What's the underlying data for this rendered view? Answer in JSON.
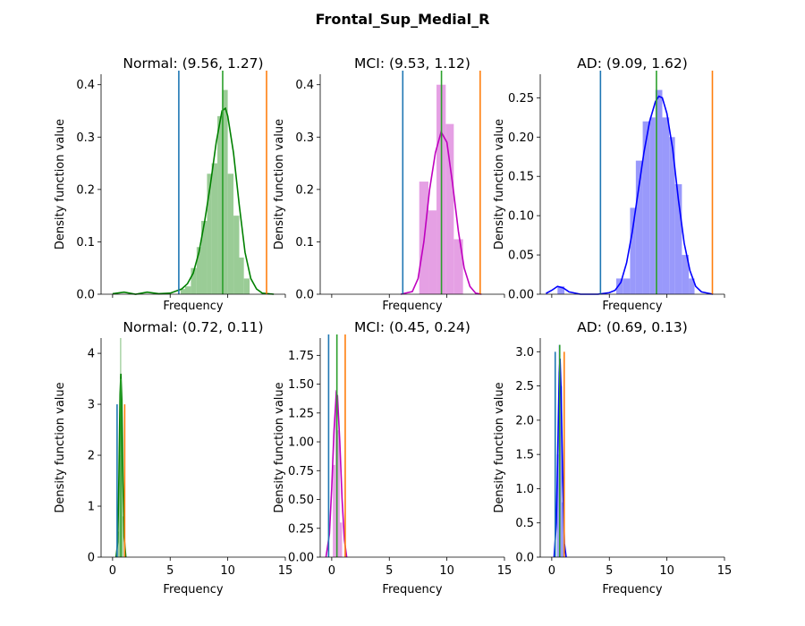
{
  "figure": {
    "title": "Frontal_Sup_Medial_R"
  },
  "colors": {
    "normal": "#008000",
    "normal_bar": "#9acc96",
    "mci": "#bf00bf",
    "mci_bar": "#e5a0e4",
    "ad": "#0000ff",
    "ad_bar": "#9999fb",
    "line_low": "#1f77b4",
    "line_mean": "#2ca02c",
    "line_high": "#ff7f0e"
  },
  "chart_data": [
    {
      "type": "histogram-kde",
      "title": "Normal: (9.56, 1.27)",
      "xlabel": "Frequency",
      "ylabel": "Density function value",
      "xlim": [
        -1,
        15
      ],
      "ylim": [
        0,
        0.42
      ],
      "yticks": [
        0.0,
        0.1,
        0.2,
        0.3,
        0.4
      ],
      "ytick_labels": [
        "0.0",
        "0.1",
        "0.2",
        "0.3",
        "0.4"
      ],
      "xticks": [
        0,
        5,
        10,
        15
      ],
      "show_xtick_labels": false,
      "color_key": "normal",
      "bars": [
        {
          "x0": 5.9,
          "x1": 6.3,
          "y": 0.01
        },
        {
          "x0": 6.3,
          "x1": 6.8,
          "y": 0.015
        },
        {
          "x0": 6.8,
          "x1": 7.3,
          "y": 0.05
        },
        {
          "x0": 7.3,
          "x1": 7.7,
          "y": 0.09
        },
        {
          "x0": 7.7,
          "x1": 8.2,
          "y": 0.14
        },
        {
          "x0": 8.2,
          "x1": 8.6,
          "y": 0.23
        },
        {
          "x0": 8.6,
          "x1": 9.1,
          "y": 0.25
        },
        {
          "x0": 9.1,
          "x1": 9.6,
          "y": 0.34
        },
        {
          "x0": 9.6,
          "x1": 10.0,
          "y": 0.39
        },
        {
          "x0": 10.0,
          "x1": 10.5,
          "y": 0.23
        },
        {
          "x0": 10.5,
          "x1": 11.0,
          "y": 0.15
        },
        {
          "x0": 11.0,
          "x1": 11.4,
          "y": 0.07
        },
        {
          "x0": 11.4,
          "x1": 11.9,
          "y": 0.03
        }
      ],
      "kde": [
        [
          0.0,
          0.001
        ],
        [
          1.0,
          0.004
        ],
        [
          2.0,
          0.0
        ],
        [
          3.0,
          0.004
        ],
        [
          4.0,
          0.001
        ],
        [
          5.0,
          0.002
        ],
        [
          6.0,
          0.01
        ],
        [
          6.5,
          0.02
        ],
        [
          7.0,
          0.04
        ],
        [
          7.5,
          0.08
        ],
        [
          8.0,
          0.14
        ],
        [
          8.5,
          0.21
        ],
        [
          9.0,
          0.29
        ],
        [
          9.5,
          0.35
        ],
        [
          9.8,
          0.355
        ],
        [
          10.0,
          0.34
        ],
        [
          10.5,
          0.27
        ],
        [
          11.0,
          0.17
        ],
        [
          11.5,
          0.08
        ],
        [
          12.0,
          0.03
        ],
        [
          12.5,
          0.01
        ],
        [
          13.0,
          0.002
        ],
        [
          14.0,
          0.0
        ]
      ],
      "vlines": [
        {
          "x": 5.75,
          "color_key": "line_low"
        },
        {
          "x": 9.56,
          "color_key": "line_mean"
        },
        {
          "x": 13.37,
          "color_key": "line_high"
        }
      ]
    },
    {
      "type": "histogram-kde",
      "title": "MCI: (9.53, 1.12)",
      "xlabel": "Frequency",
      "ylabel": "Density function value",
      "xlim": [
        -1,
        15
      ],
      "ylim": [
        0,
        0.42
      ],
      "yticks": [
        0.0,
        0.1,
        0.2,
        0.3,
        0.4
      ],
      "ytick_labels": [
        "0.0",
        "0.1",
        "0.2",
        "0.3",
        "0.4"
      ],
      "xticks": [
        0,
        5,
        10,
        15
      ],
      "show_xtick_labels": false,
      "color_key": "mci",
      "bars": [
        {
          "x0": 7.6,
          "x1": 8.4,
          "y": 0.215
        },
        {
          "x0": 8.4,
          "x1": 9.1,
          "y": 0.16
        },
        {
          "x0": 9.1,
          "x1": 9.9,
          "y": 0.4
        },
        {
          "x0": 9.9,
          "x1": 10.6,
          "y": 0.325
        },
        {
          "x0": 10.6,
          "x1": 11.4,
          "y": 0.105
        }
      ],
      "kde": [
        [
          6.0,
          0.0
        ],
        [
          7.0,
          0.005
        ],
        [
          7.5,
          0.03
        ],
        [
          8.0,
          0.1
        ],
        [
          8.5,
          0.2
        ],
        [
          9.0,
          0.27
        ],
        [
          9.5,
          0.31
        ],
        [
          10.0,
          0.29
        ],
        [
          10.5,
          0.21
        ],
        [
          11.0,
          0.12
        ],
        [
          11.5,
          0.05
        ],
        [
          12.0,
          0.015
        ],
        [
          12.5,
          0.002
        ],
        [
          13.0,
          0.0
        ]
      ],
      "vlines": [
        {
          "x": 6.17,
          "color_key": "line_low"
        },
        {
          "x": 9.53,
          "color_key": "line_mean"
        },
        {
          "x": 12.89,
          "color_key": "line_high"
        }
      ]
    },
    {
      "type": "histogram-kde",
      "title": "AD: (9.09, 1.62)",
      "xlabel": "Frequency",
      "ylabel": "Density function value",
      "xlim": [
        -1,
        15
      ],
      "ylim": [
        0,
        0.28
      ],
      "yticks": [
        0.0,
        0.05,
        0.1,
        0.15,
        0.2,
        0.25
      ],
      "ytick_labels": [
        "0.00",
        "0.05",
        "0.10",
        "0.15",
        "0.20",
        "0.25"
      ],
      "xticks": [
        0,
        5,
        10,
        15
      ],
      "show_xtick_labels": false,
      "color_key": "ad",
      "bars": [
        {
          "x0": 0.5,
          "x1": 1.1,
          "y": 0.01
        },
        {
          "x0": 5.6,
          "x1": 6.2,
          "y": 0.02
        },
        {
          "x0": 6.2,
          "x1": 6.8,
          "y": 0.02
        },
        {
          "x0": 6.8,
          "x1": 7.3,
          "y": 0.11
        },
        {
          "x0": 7.3,
          "x1": 7.9,
          "y": 0.17
        },
        {
          "x0": 7.9,
          "x1": 8.5,
          "y": 0.22
        },
        {
          "x0": 8.5,
          "x1": 9.0,
          "y": 0.225
        },
        {
          "x0": 9.0,
          "x1": 9.6,
          "y": 0.26
        },
        {
          "x0": 9.6,
          "x1": 10.2,
          "y": 0.225
        },
        {
          "x0": 10.2,
          "x1": 10.7,
          "y": 0.2
        },
        {
          "x0": 10.7,
          "x1": 11.3,
          "y": 0.14
        },
        {
          "x0": 11.3,
          "x1": 11.9,
          "y": 0.05
        },
        {
          "x0": 11.9,
          "x1": 12.4,
          "y": 0.02
        }
      ],
      "kde": [
        [
          -0.5,
          0.001
        ],
        [
          0.0,
          0.005
        ],
        [
          0.5,
          0.01
        ],
        [
          1.0,
          0.008
        ],
        [
          1.5,
          0.003
        ],
        [
          2.5,
          0.0
        ],
        [
          4.0,
          0.0
        ],
        [
          5.0,
          0.002
        ],
        [
          5.5,
          0.005
        ],
        [
          6.0,
          0.015
        ],
        [
          6.5,
          0.04
        ],
        [
          7.0,
          0.08
        ],
        [
          7.5,
          0.13
        ],
        [
          8.0,
          0.18
        ],
        [
          8.5,
          0.22
        ],
        [
          9.0,
          0.245
        ],
        [
          9.3,
          0.252
        ],
        [
          9.6,
          0.25
        ],
        [
          10.0,
          0.23
        ],
        [
          10.5,
          0.185
        ],
        [
          11.0,
          0.12
        ],
        [
          11.5,
          0.065
        ],
        [
          12.0,
          0.03
        ],
        [
          12.5,
          0.01
        ],
        [
          13.0,
          0.003
        ],
        [
          14.0,
          0.0
        ]
      ],
      "vlines": [
        {
          "x": 4.23,
          "color_key": "line_low"
        },
        {
          "x": 9.09,
          "color_key": "line_mean"
        },
        {
          "x": 13.95,
          "color_key": "line_high"
        }
      ]
    },
    {
      "type": "histogram-kde",
      "title": "Normal: (0.72, 0.11)",
      "xlabel": "Frequency",
      "ylabel": "Density function value",
      "xlim": [
        -1,
        15
      ],
      "ylim": [
        0,
        4.3
      ],
      "yticks": [
        0,
        1,
        2,
        3,
        4
      ],
      "ytick_labels": [
        "0",
        "1",
        "2",
        "3",
        "4"
      ],
      "xticks": [
        0,
        5,
        10,
        15
      ],
      "xtick_labels": [
        "0",
        "5",
        "10",
        "15"
      ],
      "show_xtick_labels": true,
      "color_key": "normal",
      "bars": [
        {
          "x0": 0.45,
          "x1": 0.55,
          "y": 0.5
        },
        {
          "x0": 0.55,
          "x1": 0.65,
          "y": 2.0
        },
        {
          "x0": 0.65,
          "x1": 0.75,
          "y": 4.3
        },
        {
          "x0": 0.75,
          "x1": 0.85,
          "y": 2.7
        },
        {
          "x0": 0.85,
          "x1": 0.95,
          "y": 0.8
        }
      ],
      "kde": [
        [
          0.3,
          0.0
        ],
        [
          0.45,
          0.3
        ],
        [
          0.55,
          1.6
        ],
        [
          0.65,
          3.2
        ],
        [
          0.72,
          3.6
        ],
        [
          0.8,
          3.1
        ],
        [
          0.9,
          1.5
        ],
        [
          1.0,
          0.4
        ],
        [
          1.15,
          0.0
        ]
      ],
      "vlines": [
        {
          "x": 0.39,
          "color_key": "line_low",
          "height": 3.0
        },
        {
          "x": 0.72,
          "color_key": "line_mean",
          "height": 3.5
        },
        {
          "x": 1.05,
          "color_key": "line_high",
          "height": 3.0
        }
      ]
    },
    {
      "type": "histogram-kde",
      "title": "MCI: (0.45, 0.24)",
      "xlabel": "Frequency",
      "ylabel": "Density function value",
      "xlim": [
        -1,
        15
      ],
      "ylim": [
        0,
        1.9
      ],
      "yticks": [
        0.0,
        0.25,
        0.5,
        0.75,
        1.0,
        1.25,
        1.5,
        1.75
      ],
      "ytick_labels": [
        "0.00",
        "0.25",
        "0.50",
        "0.75",
        "1.00",
        "1.25",
        "1.50",
        "1.75"
      ],
      "xticks": [
        0,
        5,
        10,
        15
      ],
      "xtick_labels": [
        "0",
        "5",
        "10",
        "15"
      ],
      "show_xtick_labels": true,
      "color_key": "mci",
      "bars": [
        {
          "x0": 0.1,
          "x1": 0.3,
          "y": 0.8
        },
        {
          "x0": 0.3,
          "x1": 0.5,
          "y": 1.45
        },
        {
          "x0": 0.5,
          "x1": 0.7,
          "y": 1.1
        },
        {
          "x0": 0.7,
          "x1": 0.9,
          "y": 0.3
        }
      ],
      "kde": [
        [
          -0.5,
          0.0
        ],
        [
          -0.2,
          0.2
        ],
        [
          0.0,
          0.6
        ],
        [
          0.2,
          1.1
        ],
        [
          0.4,
          1.42
        ],
        [
          0.5,
          1.4
        ],
        [
          0.7,
          1.0
        ],
        [
          0.9,
          0.5
        ],
        [
          1.1,
          0.15
        ],
        [
          1.3,
          0.0
        ]
      ],
      "vlines": [
        {
          "x": -0.27,
          "color_key": "line_low"
        },
        {
          "x": 0.45,
          "color_key": "line_mean"
        },
        {
          "x": 1.17,
          "color_key": "line_high"
        }
      ]
    },
    {
      "type": "histogram-kde",
      "title": "AD: (0.69, 0.13)",
      "xlabel": "Frequency",
      "ylabel": "Density function value",
      "xlim": [
        -1,
        15
      ],
      "ylim": [
        0,
        3.2
      ],
      "yticks": [
        0.0,
        0.5,
        1.0,
        1.5,
        2.0,
        2.5,
        3.0
      ],
      "ytick_labels": [
        "0.0",
        "0.5",
        "1.0",
        "1.5",
        "2.0",
        "2.5",
        "3.0"
      ],
      "xticks": [
        0,
        5,
        10,
        15
      ],
      "xtick_labels": [
        "0",
        "5",
        "10",
        "15"
      ],
      "show_xtick_labels": true,
      "color_key": "ad",
      "bars": [
        {
          "x0": 0.45,
          "x1": 0.6,
          "y": 1.5
        },
        {
          "x0": 0.6,
          "x1": 0.75,
          "y": 3.1
        },
        {
          "x0": 0.75,
          "x1": 0.9,
          "y": 2.5
        },
        {
          "x0": 0.9,
          "x1": 1.05,
          "y": 0.8
        }
      ],
      "kde": [
        [
          0.2,
          0.0
        ],
        [
          0.4,
          0.5
        ],
        [
          0.55,
          1.8
        ],
        [
          0.65,
          2.7
        ],
        [
          0.72,
          2.9
        ],
        [
          0.8,
          2.5
        ],
        [
          0.95,
          1.2
        ],
        [
          1.1,
          0.2
        ],
        [
          1.25,
          0.0
        ]
      ],
      "vlines": [
        {
          "x": 0.3,
          "color_key": "line_low",
          "height": 3.0
        },
        {
          "x": 0.69,
          "color_key": "line_mean",
          "height": 3.1
        },
        {
          "x": 1.08,
          "color_key": "line_high",
          "height": 3.0
        }
      ]
    }
  ]
}
